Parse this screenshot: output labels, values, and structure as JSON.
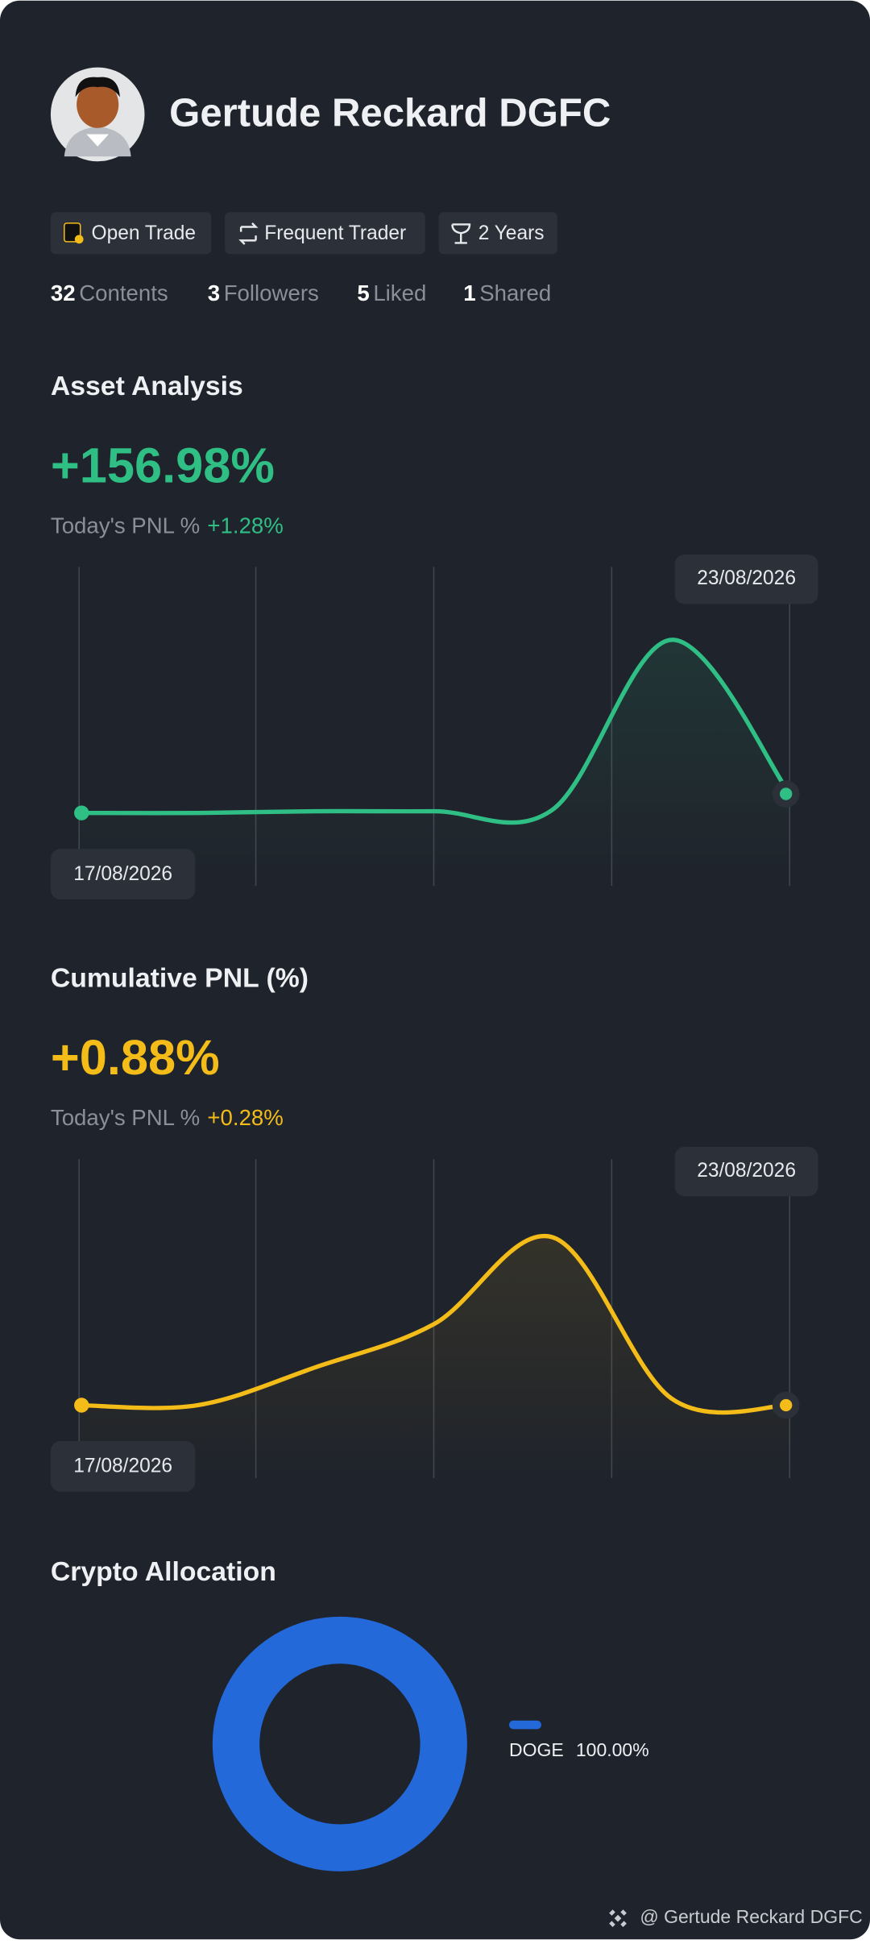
{
  "profile": {
    "name": "Gertude Reckard DGFC",
    "badges": [
      "Open Trade",
      "Frequent Trader",
      "2 Years"
    ],
    "stats": [
      {
        "value": 32,
        "label": "Contents"
      },
      {
        "value": 3,
        "label": "Followers"
      },
      {
        "value": 5,
        "label": "Liked"
      },
      {
        "value": 1,
        "label": "Shared"
      }
    ]
  },
  "chart_data": [
    {
      "type": "line",
      "title": "Asset Analysis",
      "headline": "+156.98%",
      "pnl_label": "Today's PNL %",
      "pnl_value": "+1.28%",
      "categories": [
        "17/08/2026",
        null,
        null,
        null,
        null,
        null,
        "23/08/2026"
      ],
      "series": [
        {
          "color": "#2fbf85",
          "values": [
            0,
            0,
            1,
            1,
            2,
            100,
            11
          ]
        }
      ],
      "ylim": [
        0,
        100
      ]
    },
    {
      "type": "line",
      "title": "Cumulative PNL (%)",
      "headline": "+0.88%",
      "pnl_label": "Today's PNL %",
      "pnl_value": "+0.28%",
      "categories": [
        "17/08/2026",
        null,
        null,
        null,
        null,
        null,
        "23/08/2026"
      ],
      "series": [
        {
          "color": "#f3bc19",
          "values": [
            0,
            0,
            22,
            47,
            97,
            4,
            0
          ]
        }
      ],
      "ylim": [
        0,
        100
      ]
    },
    {
      "type": "pie",
      "title": "Crypto Allocation",
      "categories": [
        "DOGE"
      ],
      "values": [
        100
      ],
      "value_labels": [
        "100.00%"
      ],
      "color": "#2369d9"
    }
  ],
  "footer": "@ Gertude Reckard DGFC"
}
